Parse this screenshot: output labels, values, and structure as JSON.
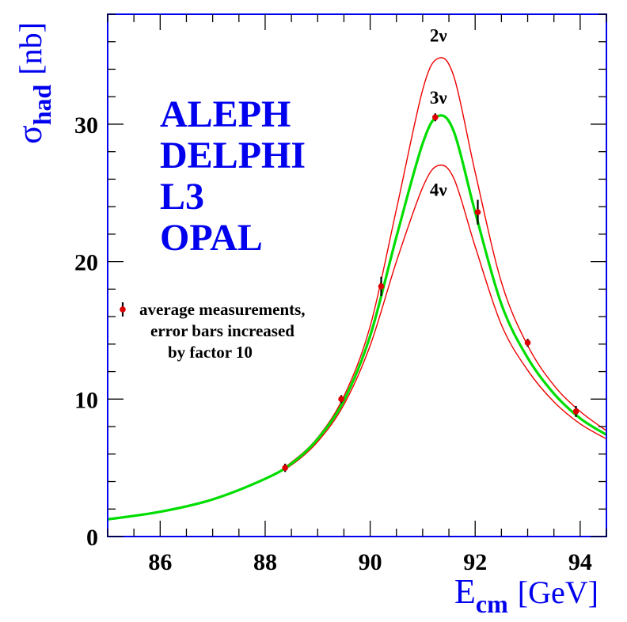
{
  "chart_data": {
    "type": "line",
    "xlabel": {
      "main": "E",
      "sub": "cm",
      "unit": "[GeV]"
    },
    "ylabel": {
      "main": "σ",
      "sub": "had",
      "unit": "[nb]"
    },
    "xlim": [
      85,
      94.5
    ],
    "ylim": [
      0,
      38
    ],
    "x_ticks": [
      86,
      88,
      90,
      92,
      94
    ],
    "y_ticks": [
      0,
      10,
      20,
      30
    ],
    "experiments": [
      "ALEPH",
      "DELPHI",
      "L3",
      "OPAL"
    ],
    "series": [
      {
        "name": "2ν",
        "color": "#ee0000",
        "peak": 34.8,
        "x": [
          85.0,
          86.0,
          87.0,
          88.0,
          88.5,
          89.0,
          89.5,
          90.0,
          90.5,
          91.0,
          91.3,
          91.6,
          92.0,
          92.5,
          93.0,
          93.5,
          94.0,
          94.5
        ],
        "y": [
          1.25,
          1.8,
          2.7,
          4.2,
          5.4,
          7.2,
          10.2,
          15.3,
          23.8,
          32.5,
          34.8,
          33.4,
          26.5,
          18.5,
          13.9,
          11.0,
          9.1,
          7.7
        ]
      },
      {
        "name": "3ν",
        "color": "#00dd00",
        "peak": 30.6,
        "x": [
          85.0,
          86.0,
          87.0,
          88.0,
          88.5,
          89.0,
          89.5,
          90.0,
          90.5,
          91.0,
          91.3,
          91.6,
          92.0,
          92.5,
          93.0,
          93.5,
          94.0,
          94.5
        ],
        "y": [
          1.25,
          1.8,
          2.7,
          4.2,
          5.3,
          7.1,
          9.9,
          14.6,
          21.8,
          28.6,
          30.6,
          29.4,
          23.6,
          16.9,
          13.0,
          10.4,
          8.6,
          7.4
        ]
      },
      {
        "name": "4ν",
        "color": "#ee0000",
        "peak": 27.0,
        "x": [
          85.0,
          86.0,
          87.0,
          88.0,
          88.5,
          89.0,
          89.5,
          90.0,
          90.5,
          91.0,
          91.3,
          91.6,
          92.0,
          92.5,
          93.0,
          93.5,
          94.0,
          94.5
        ],
        "y": [
          1.25,
          1.8,
          2.7,
          4.2,
          5.2,
          6.9,
          9.6,
          13.9,
          20.0,
          25.4,
          27.0,
          26.0,
          21.1,
          15.4,
          12.1,
          9.8,
          8.2,
          7.1
        ]
      }
    ],
    "measurements": {
      "name": "average measurements, error bars increased by factor 10",
      "color": "#dd0000",
      "points": [
        {
          "x": 88.38,
          "y": 5.0,
          "err": 0.3
        },
        {
          "x": 89.45,
          "y": 10.0,
          "err": 0.2
        },
        {
          "x": 90.21,
          "y": 18.2,
          "err": 0.7
        },
        {
          "x": 91.24,
          "y": 30.5,
          "err": 0.2
        },
        {
          "x": 92.05,
          "y": 23.6,
          "err": 0.9
        },
        {
          "x": 93.0,
          "y": 14.1,
          "err": 0.2
        },
        {
          "x": 93.92,
          "y": 9.1,
          "err": 0.4
        }
      ]
    },
    "legend": {
      "lines": [
        "average measurements,",
        "error bars increased",
        "by factor 10"
      ],
      "placement": "left-middle"
    },
    "grid": false
  },
  "colors": {
    "frame": "#0000ee",
    "axis_title": "#0000ee",
    "experiments": "#0000ee"
  }
}
